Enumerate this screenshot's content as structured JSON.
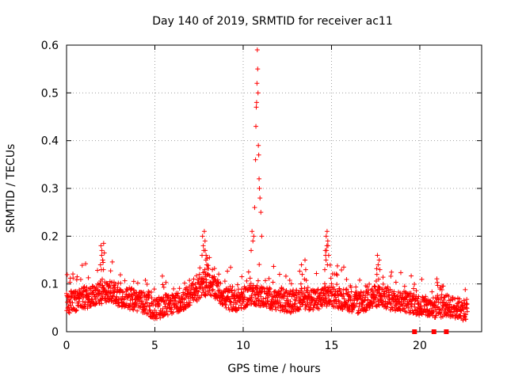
{
  "chart_data": {
    "type": "scatter",
    "title": "Day 140 of 2019, SRMTID for receiver ac11",
    "xlabel": "GPS time / hours",
    "ylabel": "SRMTID / TECUs",
    "xlim": [
      0,
      23.5
    ],
    "ylim": [
      0,
      0.6
    ],
    "xticks": [
      "0",
      "5",
      "10",
      "15",
      "20"
    ],
    "yticks": [
      "0",
      "0.1",
      "0.2",
      "0.3",
      "0.4",
      "0.5",
      "0.6"
    ],
    "grid": true,
    "marker": "+",
    "color": "#ff0000",
    "baseline_profile": {
      "x": [
        0,
        0.5,
        1,
        1.5,
        2,
        2.5,
        3,
        3.5,
        4,
        4.5,
        5,
        5.5,
        6,
        6.5,
        7,
        7.5,
        8,
        8.5,
        9,
        9.5,
        10,
        10.5,
        11,
        11.5,
        12,
        12.5,
        13,
        13.5,
        14,
        14.5,
        15,
        15.5,
        16,
        16.5,
        17,
        17.5,
        18,
        18.5,
        19,
        19.5,
        20,
        20.5,
        21,
        21.5,
        22,
        22.7
      ],
      "y": [
        0.06,
        0.065,
        0.07,
        0.075,
        0.08,
        0.085,
        0.075,
        0.07,
        0.065,
        0.06,
        0.045,
        0.055,
        0.06,
        0.065,
        0.075,
        0.09,
        0.1,
        0.09,
        0.07,
        0.065,
        0.07,
        0.08,
        0.075,
        0.07,
        0.065,
        0.06,
        0.065,
        0.07,
        0.065,
        0.07,
        0.075,
        0.07,
        0.065,
        0.06,
        0.065,
        0.075,
        0.07,
        0.065,
        0.065,
        0.06,
        0.055,
        0.05,
        0.05,
        0.055,
        0.05,
        0.045
      ]
    },
    "spike": {
      "x": [
        10.45,
        10.5,
        10.55,
        10.6,
        10.65,
        10.7,
        10.72,
        10.74,
        10.76,
        10.78,
        10.8,
        10.82,
        10.84,
        10.86,
        10.88,
        10.9,
        10.92,
        10.95,
        11.0,
        11.05
      ],
      "y": [
        0.17,
        0.21,
        0.19,
        0.2,
        0.26,
        0.36,
        0.43,
        0.47,
        0.48,
        0.52,
        0.59,
        0.55,
        0.5,
        0.39,
        0.37,
        0.32,
        0.3,
        0.28,
        0.25,
        0.2
      ]
    },
    "secondary_peaks": [
      {
        "x": [
          1.95,
          2.0,
          2.05,
          2.1
        ],
        "y": [
          0.18,
          0.17,
          0.15,
          0.185
        ]
      },
      {
        "x": [
          7.7,
          7.8,
          7.85,
          7.9
        ],
        "y": [
          0.2,
          0.21,
          0.17,
          0.16
        ]
      },
      {
        "x": [
          14.65,
          14.7,
          14.75,
          14.8
        ],
        "y": [
          0.17,
          0.2,
          0.21,
          0.18
        ]
      },
      {
        "x": [
          17.6,
          17.7
        ],
        "y": [
          0.16,
          0.15
        ]
      },
      {
        "x": [
          13.3,
          13.5
        ],
        "y": [
          0.14,
          0.15
        ]
      }
    ],
    "zero_markers": {
      "x": [
        19.7,
        20.8,
        21.5
      ],
      "y": [
        0,
        0,
        0
      ]
    }
  }
}
